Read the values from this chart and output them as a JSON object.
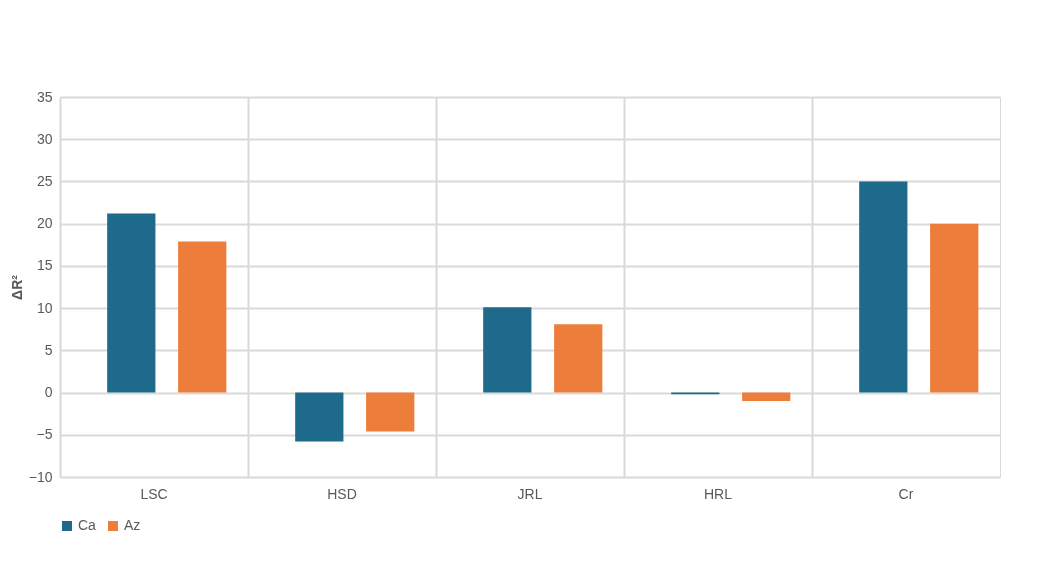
{
  "chart_data": {
    "type": "bar",
    "ylabel": "ΔR²",
    "categories": [
      "LSC",
      "HSD",
      "JRL",
      "HRL",
      "Cr"
    ],
    "series": [
      {
        "name": "Ca",
        "color": "#1d6a8c",
        "values": [
          21.2,
          -5.8,
          10.1,
          -0.2,
          25
        ]
      },
      {
        "name": "Az",
        "color": "#ec7d3b",
        "values": [
          17.9,
          -4.6,
          8.1,
          -1.0,
          20
        ]
      }
    ],
    "ylim": [
      -10,
      35
    ],
    "yticks": [
      -10,
      -5,
      0,
      5,
      10,
      15,
      20,
      25,
      30,
      35
    ],
    "grid": true,
    "legend": "bottom"
  }
}
